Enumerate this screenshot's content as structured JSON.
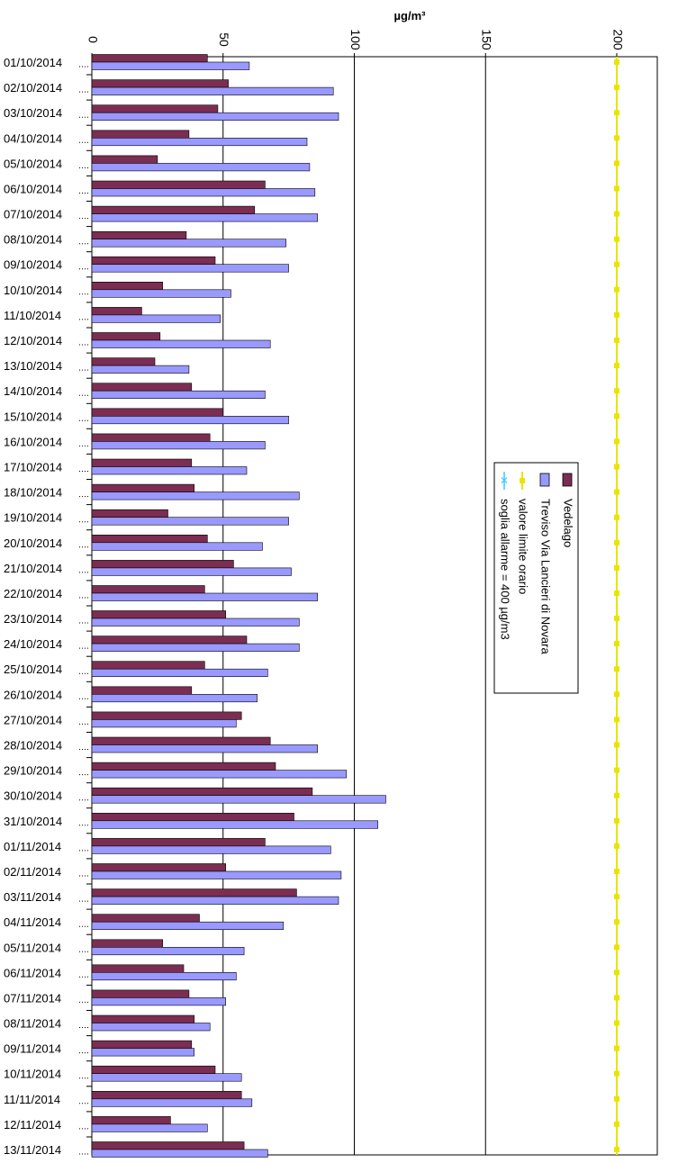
{
  "chart_data": {
    "type": "bar",
    "orientation": "horizontal",
    "axis_label": "µg/m³",
    "xlim": [
      0,
      200
    ],
    "x_ticks": [
      0,
      50,
      100,
      150,
      200
    ],
    "x_tick_labels": [
      "0",
      "50",
      "100",
      "150",
      "200"
    ],
    "grid": "vertical major gridlines",
    "legend_position": "right, inside plot",
    "categories": [
      "01/10/2014",
      "02/10/2014",
      "03/10/2014",
      "04/10/2014",
      "05/10/2014",
      "06/10/2014",
      "07/10/2014",
      "08/10/2014",
      "09/10/2014",
      "10/10/2014",
      "11/10/2014",
      "12/10/2014",
      "13/10/2014",
      "14/10/2014",
      "15/10/2014",
      "16/10/2014",
      "17/10/2014",
      "18/10/2014",
      "19/10/2014",
      "20/10/2014",
      "21/10/2014",
      "22/10/2014",
      "23/10/2014",
      "24/10/2014",
      "25/10/2014",
      "26/10/2014",
      "27/10/2014",
      "28/10/2014",
      "29/10/2014",
      "30/10/2014",
      "31/10/2014",
      "01/11/2014",
      "02/11/2014",
      "03/11/2014",
      "04/11/2014",
      "05/11/2014",
      "06/11/2014",
      "07/11/2014",
      "08/11/2014",
      "09/11/2014",
      "10/11/2014",
      "11/11/2014",
      "12/11/2014",
      "13/11/2014"
    ],
    "series": [
      {
        "name": "Vedelago",
        "color": "#7b2d52",
        "values": [
          44,
          52,
          48,
          37,
          25,
          66,
          62,
          36,
          47,
          27,
          19,
          26,
          24,
          38,
          50,
          45,
          38,
          39,
          29,
          44,
          54,
          43,
          51,
          59,
          43,
          38,
          57,
          68,
          70,
          84,
          77,
          66,
          51,
          78,
          41,
          27,
          35,
          37,
          39,
          38,
          47,
          57,
          30,
          58
        ]
      },
      {
        "name": "Treviso Via Lancieri di Novara",
        "color": "#9999ff",
        "values": [
          60,
          92,
          94,
          82,
          83,
          85,
          86,
          74,
          75,
          53,
          49,
          68,
          37,
          66,
          75,
          66,
          59,
          79,
          75,
          65,
          76,
          86,
          79,
          79,
          67,
          63,
          55,
          86,
          97,
          112,
          109,
          91,
          95,
          94,
          73,
          58,
          55,
          51,
          45,
          39,
          57,
          61,
          44,
          67
        ]
      },
      {
        "name": "valore limite orario",
        "color": "#e6e600",
        "marker": "square",
        "constant": 200
      },
      {
        "name": "soglia allarme = 400 µg/m3",
        "color": "#33ccff",
        "marker": "x",
        "constant": 400
      }
    ]
  }
}
